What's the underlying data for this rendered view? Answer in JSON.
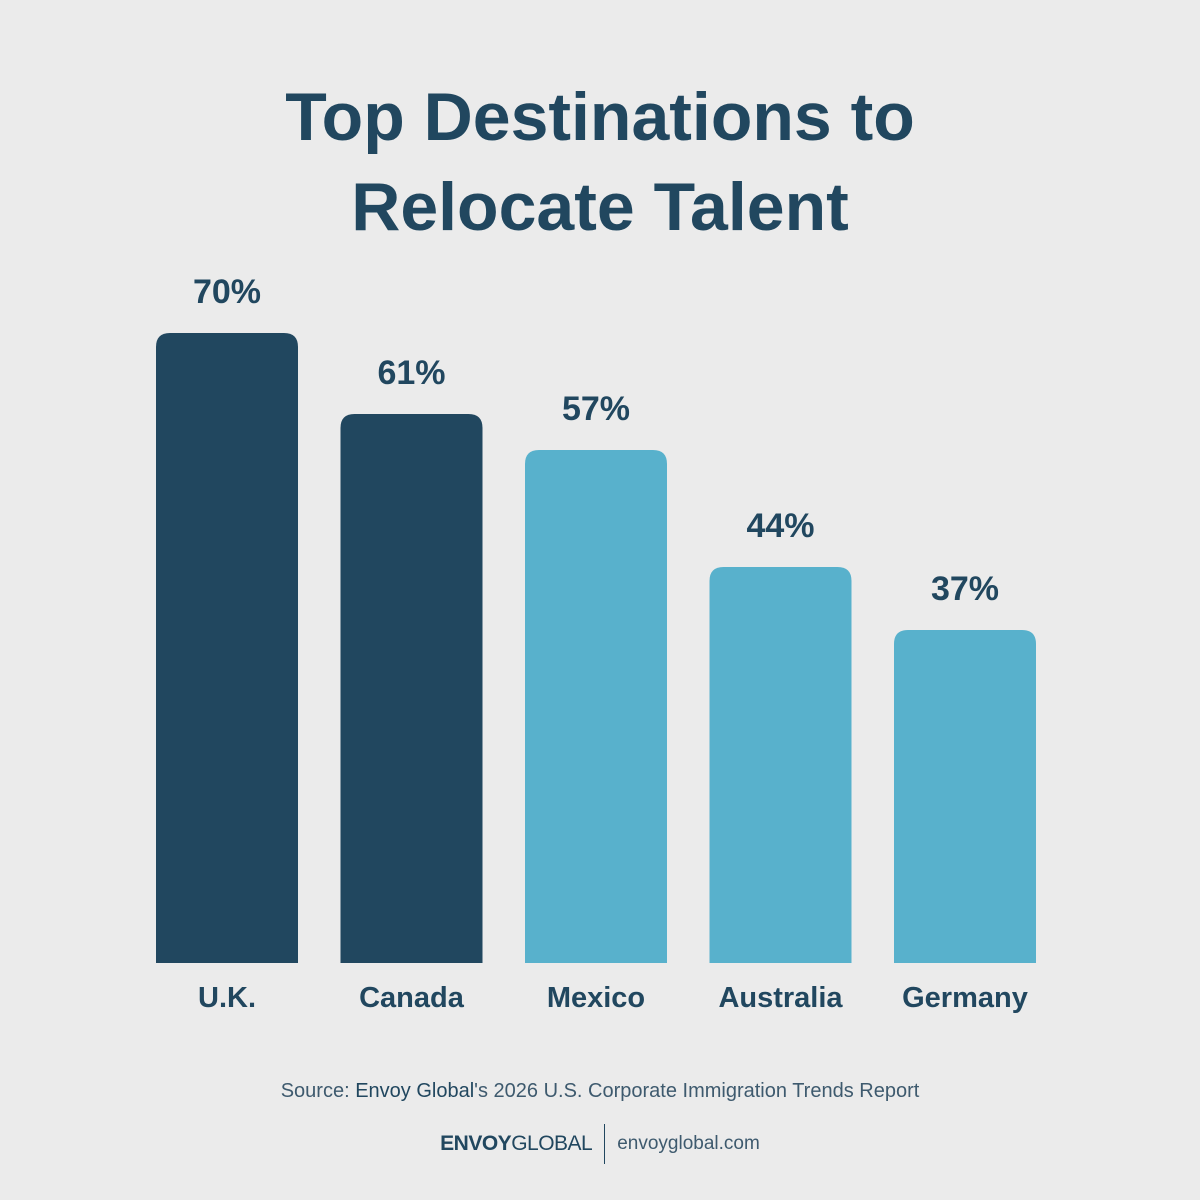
{
  "chart_data": {
    "type": "bar",
    "title": "Top Destinations to Relocate Talent",
    "categories": [
      "U.K.",
      "Canada",
      "Mexico",
      "Australia",
      "Germany"
    ],
    "values": [
      70,
      61,
      57,
      44,
      37
    ],
    "value_labels": [
      "70%",
      "61%",
      "57%",
      "44%",
      "37%"
    ],
    "colors": [
      "#21475f",
      "#21475f",
      "#58b1cc",
      "#58b1cc",
      "#58b1cc"
    ],
    "source": [
      "Source: ",
      "Envoy Global",
      "'s 2026 U.S. Corporate Immigration Trends Report"
    ],
    "logo": [
      "ENVOY",
      "GLOBAL"
    ],
    "website": "envoyglobal.com"
  }
}
